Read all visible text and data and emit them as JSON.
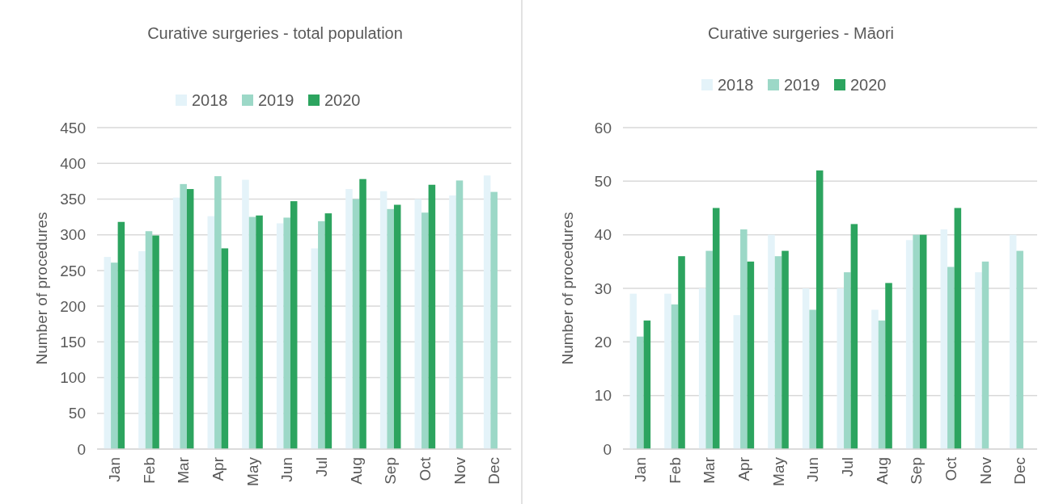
{
  "chart_data": [
    {
      "type": "bar",
      "title": "Curative surgeries - total population",
      "ylabel": "Number of procedures",
      "categories": [
        "Jan",
        "Feb",
        "Mar",
        "Apr",
        "May",
        "Jun",
        "Jul",
        "Aug",
        "Sep",
        "Oct",
        "Nov",
        "Dec"
      ],
      "series": [
        {
          "name": "2018",
          "color": "#e4f3f9",
          "values": [
            269,
            277,
            352,
            326,
            377,
            316,
            281,
            364,
            361,
            350,
            355,
            383
          ]
        },
        {
          "name": "2019",
          "color": "#9cd8c7",
          "values": [
            261,
            305,
            371,
            382,
            325,
            324,
            319,
            350,
            336,
            331,
            376,
            360
          ]
        },
        {
          "name": "2020",
          "color": "#2ca45f",
          "values": [
            318,
            299,
            364,
            281,
            327,
            347,
            330,
            378,
            342,
            370,
            null,
            null
          ]
        }
      ],
      "ylim": [
        0,
        450
      ],
      "yticks": [
        0,
        50,
        100,
        150,
        200,
        250,
        300,
        350,
        400,
        450
      ],
      "grid": "y",
      "legend": "top"
    },
    {
      "type": "bar",
      "title": "Curative surgeries - Māori",
      "ylabel": "Number of procedures",
      "categories": [
        "Jan",
        "Feb",
        "Mar",
        "Apr",
        "May",
        "Jun",
        "Jul",
        "Aug",
        "Sep",
        "Oct",
        "Nov",
        "Dec"
      ],
      "series": [
        {
          "name": "2018",
          "color": "#e4f3f9",
          "values": [
            29,
            29,
            30,
            25,
            40,
            30,
            30,
            26,
            39,
            41,
            33,
            40
          ]
        },
        {
          "name": "2019",
          "color": "#9cd8c7",
          "values": [
            21,
            27,
            37,
            41,
            36,
            26,
            33,
            24,
            40,
            34,
            35,
            37
          ]
        },
        {
          "name": "2020",
          "color": "#2ca45f",
          "values": [
            24,
            36,
            45,
            35,
            37,
            52,
            42,
            31,
            40,
            45,
            null,
            null
          ]
        }
      ],
      "ylim": [
        0,
        60
      ],
      "yticks": [
        0,
        10,
        20,
        30,
        40,
        50,
        60
      ],
      "grid": "y",
      "legend": "top"
    }
  ]
}
